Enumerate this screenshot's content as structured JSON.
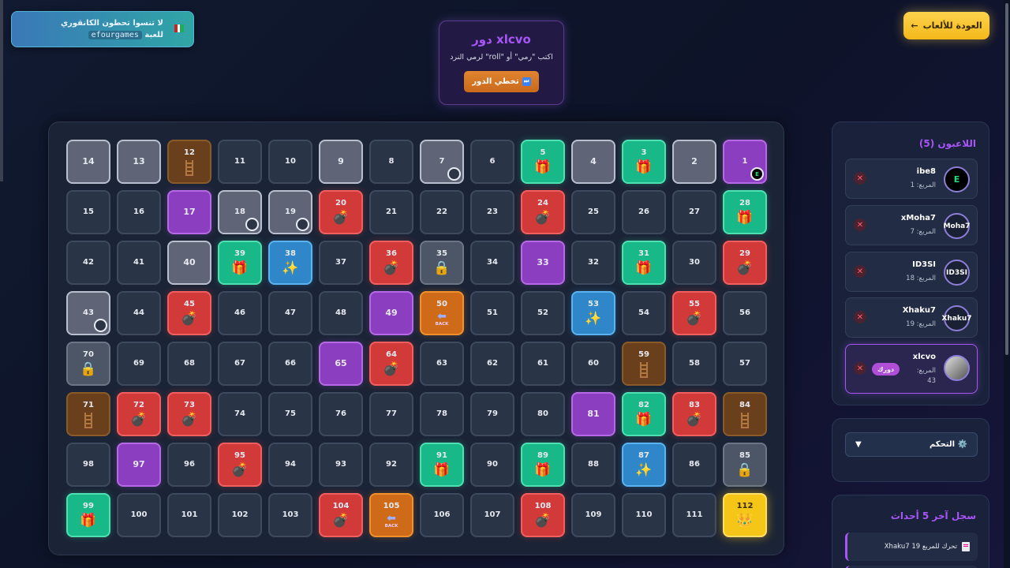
{
  "notice": {
    "line1": "لا تنسوا تحطون الكانقوري",
    "line2_prefix": "للعبة",
    "code": "efourgames"
  },
  "back_button": {
    "label": "العودة للألعاب",
    "arrow": "←"
  },
  "turn": {
    "title": "دور xlcvo",
    "hint": "اكتب \"رمي\" أو \"roll\" لرمي النرد",
    "skip_label": "تخطي الدور",
    "skip_icon": "⏭"
  },
  "players_panel": {
    "title": "اللاعبون (5)",
    "square_label": "المربع:",
    "your_turn_badge": "دورك",
    "players": [
      {
        "name": "ibe8",
        "square": "1",
        "avatar_text": "E"
      },
      {
        "name": "xMoha7",
        "square": "7",
        "avatar_text": "Moha7"
      },
      {
        "name": "ID3SI",
        "square": "18",
        "avatar_text": "ID3SI"
      },
      {
        "name": "Xhaku7",
        "square": "19",
        "avatar_text": "Xhaku7"
      },
      {
        "name": "xlcvo",
        "square": "43",
        "avatar_text": ""
      }
    ]
  },
  "control_panel": {
    "label": "⚙️ التحكم",
    "arrow": "▼"
  },
  "log_panel": {
    "title": "سجل آخر 5 أحداث",
    "entries": [
      "Xhaku7 تحرك للمربع 19"
    ]
  },
  "board": {
    "cells": [
      {
        "n": 14,
        "t": "visited"
      },
      {
        "n": 13,
        "t": "visited"
      },
      {
        "n": 12,
        "t": "ladder"
      },
      {
        "n": 11,
        "t": "normal"
      },
      {
        "n": 10,
        "t": "normal"
      },
      {
        "n": 9,
        "t": "visited"
      },
      {
        "n": 8,
        "t": "normal"
      },
      {
        "n": 7,
        "t": "visited",
        "token": "xMoha7"
      },
      {
        "n": 6,
        "t": "normal"
      },
      {
        "n": 5,
        "t": "gift"
      },
      {
        "n": 4,
        "t": "visited"
      },
      {
        "n": 3,
        "t": "gift"
      },
      {
        "n": 2,
        "t": "visited"
      },
      {
        "n": 1,
        "t": "purple",
        "token": "ibe8"
      },
      {
        "n": 15,
        "t": "normal"
      },
      {
        "n": 16,
        "t": "normal"
      },
      {
        "n": 17,
        "t": "purple"
      },
      {
        "n": 18,
        "t": "visited",
        "token": "ID3SI"
      },
      {
        "n": 19,
        "t": "visited",
        "token": "Xhaku7"
      },
      {
        "n": 20,
        "t": "bomb"
      },
      {
        "n": 21,
        "t": "normal"
      },
      {
        "n": 22,
        "t": "normal"
      },
      {
        "n": 23,
        "t": "normal"
      },
      {
        "n": 24,
        "t": "bomb"
      },
      {
        "n": 25,
        "t": "normal"
      },
      {
        "n": 26,
        "t": "normal"
      },
      {
        "n": 27,
        "t": "normal"
      },
      {
        "n": 28,
        "t": "gift"
      },
      {
        "n": 42,
        "t": "normal"
      },
      {
        "n": 41,
        "t": "normal"
      },
      {
        "n": 40,
        "t": "visited"
      },
      {
        "n": 39,
        "t": "gift"
      },
      {
        "n": 38,
        "t": "magic"
      },
      {
        "n": 37,
        "t": "normal"
      },
      {
        "n": 36,
        "t": "bomb"
      },
      {
        "n": 35,
        "t": "lock"
      },
      {
        "n": 34,
        "t": "normal"
      },
      {
        "n": 33,
        "t": "purple"
      },
      {
        "n": 32,
        "t": "normal"
      },
      {
        "n": 31,
        "t": "gift"
      },
      {
        "n": 30,
        "t": "normal"
      },
      {
        "n": 29,
        "t": "bomb"
      },
      {
        "n": 43,
        "t": "visited",
        "token": "xlcvo"
      },
      {
        "n": 44,
        "t": "normal"
      },
      {
        "n": 45,
        "t": "bomb"
      },
      {
        "n": 46,
        "t": "normal"
      },
      {
        "n": 47,
        "t": "normal"
      },
      {
        "n": 48,
        "t": "normal"
      },
      {
        "n": 49,
        "t": "purple"
      },
      {
        "n": 50,
        "t": "back"
      },
      {
        "n": 51,
        "t": "normal"
      },
      {
        "n": 52,
        "t": "normal"
      },
      {
        "n": 53,
        "t": "magic"
      },
      {
        "n": 54,
        "t": "normal"
      },
      {
        "n": 55,
        "t": "bomb"
      },
      {
        "n": 56,
        "t": "normal"
      },
      {
        "n": 70,
        "t": "lock"
      },
      {
        "n": 69,
        "t": "normal"
      },
      {
        "n": 68,
        "t": "normal"
      },
      {
        "n": 67,
        "t": "normal"
      },
      {
        "n": 66,
        "t": "normal"
      },
      {
        "n": 65,
        "t": "purple"
      },
      {
        "n": 64,
        "t": "bomb"
      },
      {
        "n": 63,
        "t": "normal"
      },
      {
        "n": 62,
        "t": "normal"
      },
      {
        "n": 61,
        "t": "normal"
      },
      {
        "n": 60,
        "t": "normal"
      },
      {
        "n": 59,
        "t": "ladder"
      },
      {
        "n": 58,
        "t": "normal"
      },
      {
        "n": 57,
        "t": "normal"
      },
      {
        "n": 71,
        "t": "ladder"
      },
      {
        "n": 72,
        "t": "bomb"
      },
      {
        "n": 73,
        "t": "bomb"
      },
      {
        "n": 74,
        "t": "normal"
      },
      {
        "n": 75,
        "t": "normal"
      },
      {
        "n": 76,
        "t": "normal"
      },
      {
        "n": 77,
        "t": "normal"
      },
      {
        "n": 78,
        "t": "normal"
      },
      {
        "n": 79,
        "t": "normal"
      },
      {
        "n": 80,
        "t": "normal"
      },
      {
        "n": 81,
        "t": "purple"
      },
      {
        "n": 82,
        "t": "gift"
      },
      {
        "n": 83,
        "t": "bomb"
      },
      {
        "n": 84,
        "t": "ladder"
      },
      {
        "n": 98,
        "t": "normal"
      },
      {
        "n": 97,
        "t": "purple"
      },
      {
        "n": 96,
        "t": "normal"
      },
      {
        "n": 95,
        "t": "bomb"
      },
      {
        "n": 94,
        "t": "normal"
      },
      {
        "n": 93,
        "t": "normal"
      },
      {
        "n": 92,
        "t": "normal"
      },
      {
        "n": 91,
        "t": "gift"
      },
      {
        "n": 90,
        "t": "normal"
      },
      {
        "n": 89,
        "t": "gift"
      },
      {
        "n": 88,
        "t": "normal"
      },
      {
        "n": 87,
        "t": "magic"
      },
      {
        "n": 86,
        "t": "normal"
      },
      {
        "n": 85,
        "t": "lock"
      },
      {
        "n": 99,
        "t": "gift"
      },
      {
        "n": 100,
        "t": "normal"
      },
      {
        "n": 101,
        "t": "normal"
      },
      {
        "n": 102,
        "t": "normal"
      },
      {
        "n": 103,
        "t": "normal"
      },
      {
        "n": 104,
        "t": "bomb"
      },
      {
        "n": 105,
        "t": "back"
      },
      {
        "n": 106,
        "t": "normal"
      },
      {
        "n": 107,
        "t": "normal"
      },
      {
        "n": 108,
        "t": "bomb"
      },
      {
        "n": 109,
        "t": "normal"
      },
      {
        "n": 110,
        "t": "normal"
      },
      {
        "n": 111,
        "t": "normal"
      },
      {
        "n": 112,
        "t": "crown"
      }
    ],
    "icons": {
      "gift": "🎁",
      "bomb": "💣",
      "magic": "✨",
      "lock": "🔒",
      "crown": "👑",
      "back": "⬅",
      "back_text": "BACK"
    }
  }
}
